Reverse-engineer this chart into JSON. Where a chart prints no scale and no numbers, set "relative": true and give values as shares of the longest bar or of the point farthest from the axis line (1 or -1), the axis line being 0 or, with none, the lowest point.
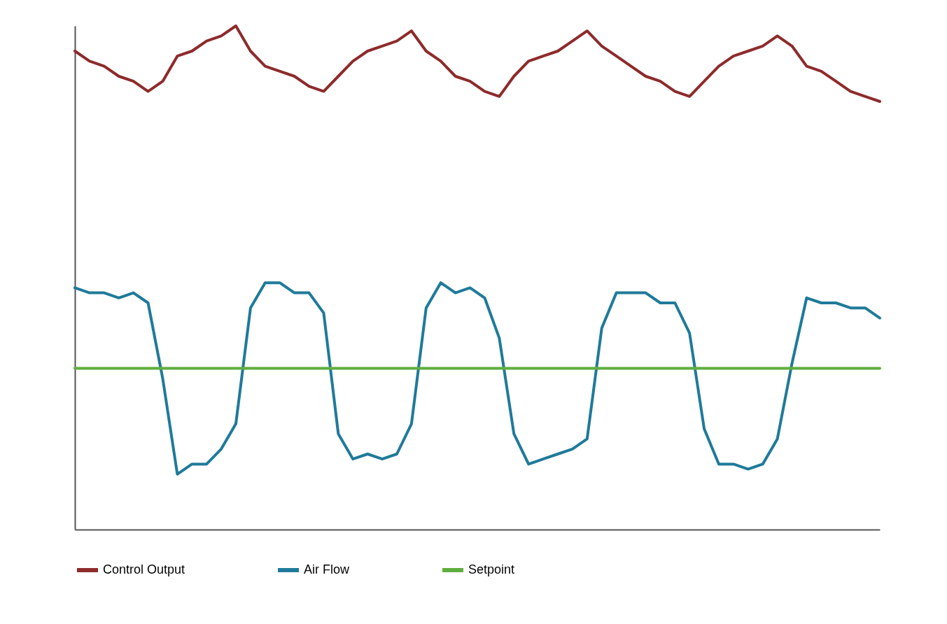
{
  "chart_data": {
    "type": "line",
    "relative": true,
    "legend": "bottom",
    "grid": false,
    "line_style": "solid",
    "marker": "none",
    "categories": [
      null,
      null,
      null,
      null,
      null,
      null,
      null,
      null,
      null,
      null,
      null,
      null,
      null,
      null,
      null,
      null,
      null,
      null,
      null,
      null,
      null,
      null,
      null,
      null,
      null,
      null,
      null,
      null,
      null,
      null,
      null,
      null,
      null,
      null,
      null,
      null,
      null,
      null,
      null,
      null,
      null,
      null,
      null,
      null,
      null,
      null,
      null,
      null,
      null,
      null,
      null,
      null,
      null,
      null,
      null,
      null
    ],
    "series": [
      {
        "name": "Control Output",
        "color": "#8e2b2b",
        "values": [
          0.95,
          0.93,
          0.92,
          0.9,
          0.89,
          0.87,
          0.89,
          0.94,
          0.95,
          0.97,
          0.98,
          1.0,
          0.95,
          0.92,
          0.91,
          0.9,
          0.88,
          0.87,
          0.9,
          0.93,
          0.95,
          0.96,
          0.97,
          0.99,
          0.95,
          0.93,
          0.9,
          0.89,
          0.87,
          0.86,
          0.9,
          0.93,
          0.94,
          0.95,
          0.97,
          0.99,
          0.96,
          0.94,
          0.92,
          0.9,
          0.89,
          0.87,
          0.86,
          0.89,
          0.92,
          0.94,
          0.95,
          0.96,
          0.98,
          0.96,
          0.92,
          0.91,
          0.89,
          0.87,
          0.86,
          0.85
        ]
      },
      {
        "name": "Air Flow",
        "color": "#1f7a9a",
        "values": [
          0.48,
          0.47,
          0.47,
          0.46,
          0.47,
          0.45,
          0.3,
          0.11,
          0.13,
          0.13,
          0.16,
          0.21,
          0.44,
          0.49,
          0.49,
          0.47,
          0.47,
          0.43,
          0.19,
          0.14,
          0.15,
          0.14,
          0.15,
          0.21,
          0.44,
          0.49,
          0.47,
          0.48,
          0.46,
          0.38,
          0.19,
          0.13,
          0.14,
          0.15,
          0.16,
          0.18,
          0.4,
          0.47,
          0.47,
          0.47,
          0.45,
          0.45,
          0.39,
          0.2,
          0.13,
          0.13,
          0.12,
          0.13,
          0.18,
          0.33,
          0.46,
          0.45,
          0.45,
          0.44,
          0.44,
          0.42
        ]
      },
      {
        "name": "Setpoint",
        "color": "#5fae3e",
        "values": [
          0.32,
          0.32,
          0.32,
          0.32,
          0.32,
          0.32,
          0.32,
          0.32,
          0.32,
          0.32,
          0.32,
          0.32,
          0.32,
          0.32,
          0.32,
          0.32,
          0.32,
          0.32,
          0.32,
          0.32,
          0.32,
          0.32,
          0.32,
          0.32,
          0.32,
          0.32,
          0.32,
          0.32,
          0.32,
          0.32,
          0.32,
          0.32,
          0.32,
          0.32,
          0.32,
          0.32,
          0.32,
          0.32,
          0.32,
          0.32,
          0.32,
          0.32,
          0.32,
          0.32,
          0.32,
          0.32,
          0.32,
          0.32,
          0.32,
          0.32,
          0.32,
          0.32,
          0.32,
          0.32,
          0.32,
          0.32
        ]
      }
    ]
  }
}
